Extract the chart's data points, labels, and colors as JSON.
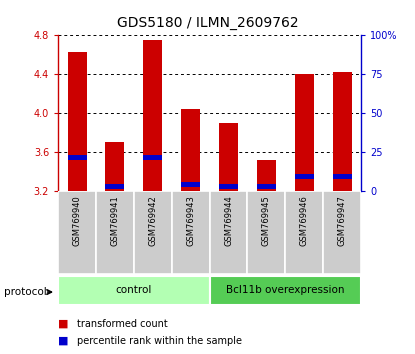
{
  "title": "GDS5180 / ILMN_2609762",
  "samples": [
    "GSM769940",
    "GSM769941",
    "GSM769942",
    "GSM769943",
    "GSM769944",
    "GSM769945",
    "GSM769946",
    "GSM769947"
  ],
  "red_values": [
    4.63,
    3.7,
    4.75,
    4.04,
    3.9,
    3.52,
    4.4,
    4.42
  ],
  "blue_values": [
    3.52,
    3.22,
    3.52,
    3.24,
    3.22,
    3.22,
    3.32,
    3.32
  ],
  "y_min": 3.2,
  "y_max": 4.8,
  "y_ticks": [
    3.2,
    3.6,
    4.0,
    4.4,
    4.8
  ],
  "y_right_ticks": [
    0,
    25,
    50,
    75,
    100
  ],
  "groups": [
    {
      "label": "control",
      "indices": [
        0,
        1,
        2,
        3
      ],
      "color": "#b3ffb3"
    },
    {
      "label": "Bcl11b overexpression",
      "indices": [
        4,
        5,
        6,
        7
      ],
      "color": "#55cc55"
    }
  ],
  "protocol_label": "protocol",
  "bar_width": 0.5,
  "red_color": "#cc0000",
  "blue_color": "#0000cc",
  "grid_color": "#000000",
  "bg_color": "#ffffff",
  "plot_bg": "#ffffff",
  "label_bg": "#cccccc",
  "left_axis_color": "#cc0000",
  "right_axis_color": "#0000cc",
  "legend_red": "transformed count",
  "legend_blue": "percentile rank within the sample"
}
